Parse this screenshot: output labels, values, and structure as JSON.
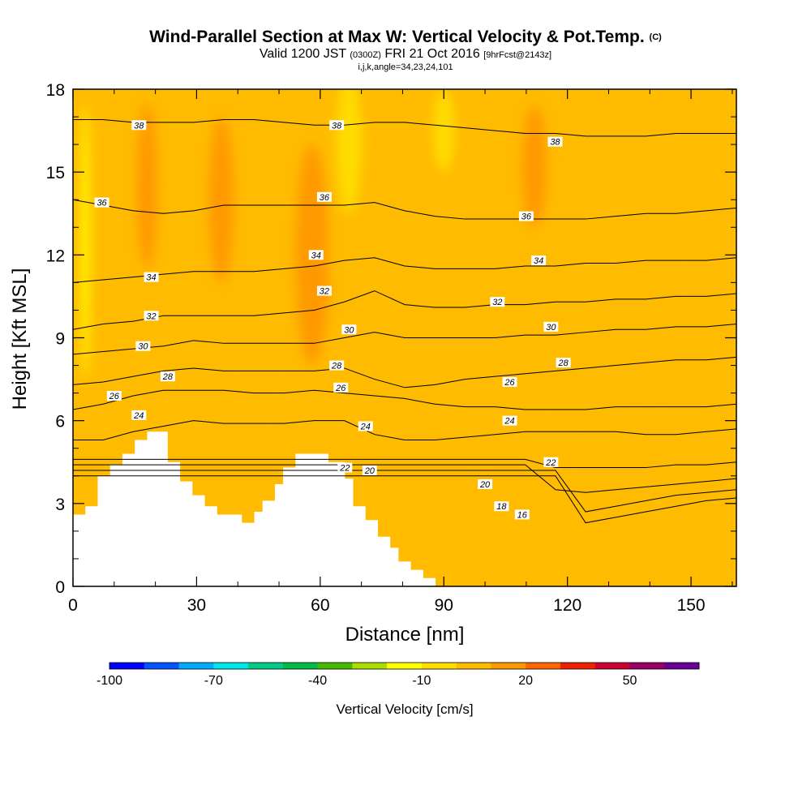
{
  "chart_data": {
    "type": "contour-section",
    "title": "Wind-Parallel Section at Max W: Vertical Velocity & Pot.Temp.",
    "title_mark": "(C)",
    "subtitle_parts": [
      "Valid 1200 JST",
      "(0300Z)",
      "FRI 21 Oct 2016",
      "[9hrFcst@2143z]"
    ],
    "subsubtitle": "i,j,k,angle=34,23,24,101",
    "xlabel": "Distance [nm]",
    "ylabel": "Height [Kft MSL]",
    "xlim": [
      0,
      161
    ],
    "ylim": [
      0,
      18
    ],
    "x_ticks": [
      0,
      30,
      60,
      90,
      120,
      150
    ],
    "y_ticks": [
      0,
      3,
      6,
      9,
      12,
      15,
      18
    ],
    "terrain": [
      [
        0,
        2.6
      ],
      [
        3,
        2.6
      ],
      [
        3,
        2.9
      ],
      [
        6,
        2.9
      ],
      [
        6,
        4
      ],
      [
        9,
        4
      ],
      [
        9,
        4.4
      ],
      [
        12,
        4.4
      ],
      [
        12,
        4.8
      ],
      [
        15,
        4.8
      ],
      [
        15,
        5.3
      ],
      [
        18,
        5.3
      ],
      [
        18,
        5.6
      ],
      [
        23,
        5.6
      ],
      [
        23,
        4.5
      ],
      [
        26,
        4.5
      ],
      [
        26,
        3.8
      ],
      [
        29,
        3.8
      ],
      [
        29,
        3.3
      ],
      [
        32,
        3.3
      ],
      [
        32,
        2.9
      ],
      [
        35,
        2.9
      ],
      [
        35,
        2.6
      ],
      [
        38,
        2.6
      ],
      [
        38,
        2.6
      ],
      [
        41,
        2.6
      ],
      [
        41,
        2.3
      ],
      [
        44,
        2.3
      ],
      [
        44,
        2.7
      ],
      [
        46,
        2.7
      ],
      [
        46,
        3.1
      ],
      [
        49,
        3.1
      ],
      [
        49,
        3.7
      ],
      [
        51,
        3.7
      ],
      [
        51,
        4.3
      ],
      [
        54,
        4.3
      ],
      [
        54,
        4.8
      ],
      [
        62,
        4.8
      ],
      [
        62,
        4.5
      ],
      [
        66,
        4.5
      ],
      [
        66,
        3.9
      ],
      [
        68,
        3.9
      ],
      [
        68,
        2.9
      ],
      [
        71,
        2.9
      ],
      [
        71,
        2.4
      ],
      [
        74,
        2.4
      ],
      [
        74,
        1.8
      ],
      [
        77,
        1.8
      ],
      [
        77,
        1.4
      ],
      [
        79,
        1.4
      ],
      [
        79,
        0.9
      ],
      [
        82,
        0.9
      ],
      [
        82,
        0.6
      ],
      [
        85,
        0.6
      ],
      [
        85,
        0.3
      ],
      [
        88,
        0.3
      ],
      [
        88,
        0
      ]
    ],
    "theta_contours": [
      {
        "level": 16,
        "y": [
          4.0,
          4.0,
          4.0,
          4.0,
          4.0,
          4.0,
          4.0,
          4.0,
          4.0,
          4.0,
          4.0,
          4.0,
          4.0,
          4.0,
          4.0,
          4.0,
          4.0,
          2.3,
          2.5,
          2.7,
          2.9,
          3.1,
          3.2
        ]
      },
      {
        "level": 18,
        "y": [
          4.2,
          4.2,
          4.2,
          4.2,
          4.2,
          4.2,
          4.2,
          4.2,
          4.2,
          4.2,
          4.2,
          4.2,
          4.2,
          4.2,
          4.2,
          4.2,
          4.2,
          2.7,
          2.9,
          3.1,
          3.3,
          3.4,
          3.5
        ]
      },
      {
        "level": 20,
        "y": [
          4.4,
          4.4,
          4.4,
          4.4,
          4.4,
          4.4,
          4.4,
          4.4,
          4.4,
          4.4,
          4.4,
          4.4,
          4.4,
          4.4,
          4.4,
          4.4,
          3.5,
          3.4,
          3.5,
          3.6,
          3.7,
          3.8,
          3.9
        ]
      },
      {
        "level": 22,
        "y": [
          4.6,
          4.6,
          4.6,
          4.6,
          4.6,
          4.6,
          4.6,
          4.6,
          4.6,
          4.6,
          4.6,
          4.6,
          4.6,
          4.6,
          4.6,
          4.6,
          4.3,
          4.3,
          4.3,
          4.3,
          4.4,
          4.4,
          4.5
        ]
      },
      {
        "level": 24,
        "y": [
          5.3,
          5.3,
          5.6,
          5.8,
          6.0,
          5.9,
          5.9,
          5.9,
          6.0,
          6.0,
          5.5,
          5.3,
          5.3,
          5.4,
          5.5,
          5.6,
          5.6,
          5.6,
          5.6,
          5.5,
          5.5,
          5.6,
          5.7
        ]
      },
      {
        "level": 26,
        "y": [
          6.4,
          6.6,
          6.9,
          7.1,
          7.1,
          7.1,
          7.0,
          7.0,
          7.1,
          7.0,
          6.9,
          6.8,
          6.6,
          6.5,
          6.5,
          6.4,
          6.4,
          6.4,
          6.5,
          6.5,
          6.5,
          6.5,
          6.6
        ]
      },
      {
        "level": 28,
        "y": [
          7.3,
          7.4,
          7.6,
          7.8,
          7.9,
          7.8,
          7.8,
          7.8,
          7.8,
          7.9,
          7.5,
          7.2,
          7.3,
          7.5,
          7.6,
          7.7,
          7.8,
          7.9,
          8.0,
          8.1,
          8.2,
          8.2,
          8.3
        ]
      },
      {
        "level": 30,
        "y": [
          8.4,
          8.5,
          8.6,
          8.7,
          8.9,
          8.8,
          8.8,
          8.8,
          8.8,
          9.0,
          9.2,
          9.0,
          9.0,
          9.0,
          9.0,
          9.1,
          9.1,
          9.2,
          9.3,
          9.3,
          9.4,
          9.4,
          9.5
        ]
      },
      {
        "level": 32,
        "y": [
          9.3,
          9.5,
          9.6,
          9.8,
          9.8,
          9.8,
          9.8,
          9.9,
          10.0,
          10.3,
          10.7,
          10.2,
          10.1,
          10.1,
          10.2,
          10.2,
          10.3,
          10.3,
          10.4,
          10.4,
          10.5,
          10.5,
          10.6
        ]
      },
      {
        "level": 34,
        "y": [
          11.0,
          11.1,
          11.2,
          11.3,
          11.4,
          11.4,
          11.4,
          11.5,
          11.6,
          11.8,
          11.9,
          11.6,
          11.5,
          11.5,
          11.5,
          11.6,
          11.6,
          11.7,
          11.7,
          11.8,
          11.8,
          11.8,
          11.9
        ]
      },
      {
        "level": 36,
        "y": [
          14.0,
          13.8,
          13.6,
          13.5,
          13.6,
          13.8,
          13.8,
          13.8,
          13.8,
          13.8,
          13.9,
          13.6,
          13.4,
          13.3,
          13.3,
          13.3,
          13.3,
          13.3,
          13.4,
          13.5,
          13.5,
          13.6,
          13.7
        ]
      },
      {
        "level": 38,
        "y": [
          16.9,
          16.9,
          16.8,
          16.8,
          16.8,
          16.9,
          16.9,
          16.8,
          16.7,
          16.7,
          16.8,
          16.8,
          16.7,
          16.6,
          16.5,
          16.4,
          16.4,
          16.3,
          16.3,
          16.3,
          16.4,
          16.4,
          16.4
        ]
      }
    ],
    "theta_label_positions": [
      {
        "level": 38,
        "x": 16,
        "y": 16.7
      },
      {
        "level": 38,
        "x": 64,
        "y": 16.7
      },
      {
        "level": 38,
        "x": 117,
        "y": 16.1
      },
      {
        "level": 36,
        "x": 7,
        "y": 13.9
      },
      {
        "level": 36,
        "x": 61,
        "y": 14.1
      },
      {
        "level": 36,
        "x": 110,
        "y": 13.4
      },
      {
        "level": 34,
        "x": 19,
        "y": 11.2
      },
      {
        "level": 34,
        "x": 59,
        "y": 12.0
      },
      {
        "level": 34,
        "x": 113,
        "y": 11.8
      },
      {
        "level": 32,
        "x": 61,
        "y": 10.7
      },
      {
        "level": 32,
        "x": 19,
        "y": 9.8
      },
      {
        "level": 32,
        "x": 103,
        "y": 10.3
      },
      {
        "level": 30,
        "x": 17,
        "y": 8.7
      },
      {
        "level": 30,
        "x": 67,
        "y": 9.3
      },
      {
        "level": 30,
        "x": 116,
        "y": 9.4
      },
      {
        "level": 28,
        "x": 23,
        "y": 7.6
      },
      {
        "level": 28,
        "x": 64,
        "y": 8.0
      },
      {
        "level": 28,
        "x": 119,
        "y": 8.1
      },
      {
        "level": 26,
        "x": 10,
        "y": 6.9
      },
      {
        "level": 26,
        "x": 65,
        "y": 7.2
      },
      {
        "level": 26,
        "x": 106,
        "y": 7.4
      },
      {
        "level": 24,
        "x": 16,
        "y": 6.2
      },
      {
        "level": 24,
        "x": 71,
        "y": 5.8
      },
      {
        "level": 24,
        "x": 106,
        "y": 6.0
      },
      {
        "level": 22,
        "x": 66,
        "y": 4.3
      },
      {
        "level": 22,
        "x": 116,
        "y": 4.5
      },
      {
        "level": 20,
        "x": 72,
        "y": 4.2
      },
      {
        "level": 20,
        "x": 100,
        "y": 3.7
      },
      {
        "level": 18,
        "x": 104,
        "y": 2.9
      },
      {
        "level": 16,
        "x": 109,
        "y": 2.6
      }
    ],
    "w_field_blobs": [
      {
        "w": 20,
        "x": 59,
        "y": 11.2,
        "rx": 3,
        "ry": 2.6
      },
      {
        "w": 10,
        "x": 58,
        "y": 12.0,
        "rx": 4,
        "ry": 4
      },
      {
        "w": 10,
        "x": 36,
        "y": 14.0,
        "rx": 3,
        "ry": 3
      },
      {
        "w": 10,
        "x": 112,
        "y": 15.2,
        "rx": 3,
        "ry": 2.2
      },
      {
        "w": 10,
        "x": 18,
        "y": 14.5,
        "rx": 2.5,
        "ry": 3
      },
      {
        "w": 0,
        "x": 120,
        "y": 9.0,
        "rx": 8,
        "ry": 6
      },
      {
        "w": 0,
        "x": 140,
        "y": 13.0,
        "rx": 12,
        "ry": 6
      },
      {
        "w": 0,
        "x": 45,
        "y": 8.0,
        "rx": 8,
        "ry": 3
      },
      {
        "w": -10,
        "x": 67,
        "y": 16.0,
        "rx": 3,
        "ry": 2.5
      },
      {
        "w": -10,
        "x": 90,
        "y": 16.5,
        "rx": 2.5,
        "ry": 1.5
      },
      {
        "w": -20,
        "x": 3,
        "y": 12.5,
        "rx": 1,
        "ry": 5
      }
    ],
    "colorbar": {
      "title": "Vertical Velocity [cm/s]",
      "tick_labels": [
        "-100",
        "-70",
        "-40",
        "-10",
        "20",
        "50"
      ],
      "tick_values": [
        -100,
        -70,
        -40,
        -10,
        20,
        50
      ],
      "range": [
        -100,
        70
      ],
      "step": 10,
      "colors": [
        "#0000ff",
        "#0055ff",
        "#00aaff",
        "#00e5e5",
        "#00cc88",
        "#00bb44",
        "#44bb00",
        "#aadd00",
        "#ffff00",
        "#ffdd00",
        "#ffbb00",
        "#ff9900",
        "#ff6600",
        "#ee2200",
        "#cc0033",
        "#990066",
        "#660099"
      ]
    }
  }
}
